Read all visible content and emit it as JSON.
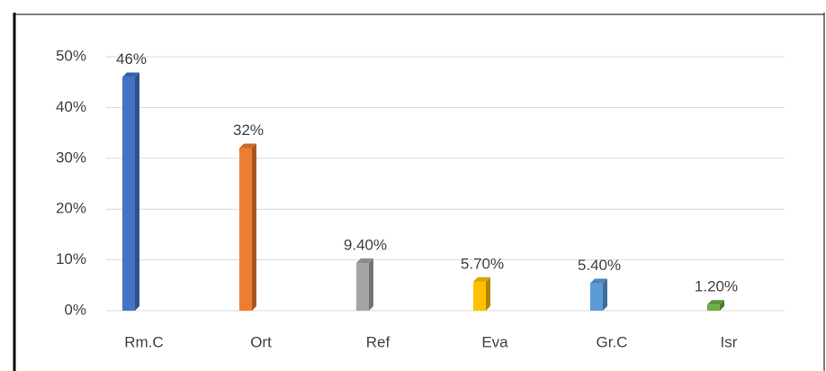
{
  "chart_data": {
    "type": "bar",
    "categories": [
      "Rm.C",
      "Ort",
      "Ref",
      "Eva",
      "Gr.C",
      "Isr"
    ],
    "values": [
      46,
      32,
      9.4,
      5.7,
      5.4,
      1.2
    ],
    "value_labels": [
      "46%",
      "32%",
      "9.40%",
      "5.70%",
      "5.40%",
      "1.20%"
    ],
    "colors": [
      "#4472c4",
      "#ed7d31",
      "#a5a5a5",
      "#ffc000",
      "#5b9bd5",
      "#70ad47"
    ],
    "ylim": [
      0,
      50
    ],
    "yticks": [
      {
        "value": 0,
        "label": "0%"
      },
      {
        "value": 10,
        "label": "10%"
      },
      {
        "value": 20,
        "label": "20%"
      },
      {
        "value": 30,
        "label": "30%"
      },
      {
        "value": 40,
        "label": "40%"
      },
      {
        "value": 50,
        "label": "50%"
      }
    ],
    "grid": true
  }
}
